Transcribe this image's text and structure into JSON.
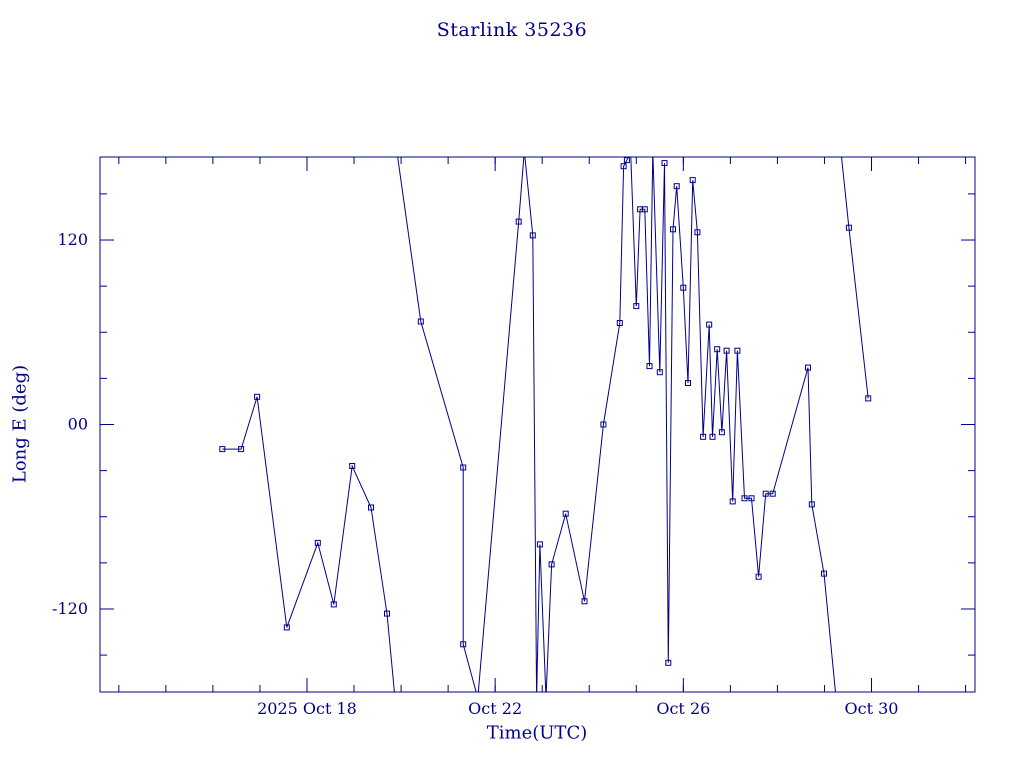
{
  "colors": {
    "accent": "#00008b",
    "background": "#ffffff"
  },
  "chart_data": {
    "type": "line",
    "title": "Starlink 35236",
    "xlabel": "Time(UTC)",
    "ylabel": "Long E (deg)",
    "x_unit": "day of October 2025, UTC",
    "xlim": [
      13.6,
      32.2
    ],
    "ylim": [
      -174,
      174
    ],
    "grid": false,
    "legend": null,
    "marker": "open-square",
    "x_ticks": [
      {
        "value": 18,
        "label": "2025 Oct 18"
      },
      {
        "value": 22,
        "label": "Oct 22"
      },
      {
        "value": 26,
        "label": "Oct 26"
      },
      {
        "value": 30,
        "label": "Oct 30"
      }
    ],
    "x_minor_step": 1,
    "y_ticks": [
      {
        "value": 120,
        "label": "120"
      },
      {
        "value": 0,
        "label": "00"
      },
      {
        "value": -120,
        "label": "-120"
      }
    ],
    "y_minor_step": 30,
    "series_name": "longitude east of satellite vs time (wraps at +/-180 deg)",
    "segments": [
      [
        [
          16.2,
          -16
        ],
        [
          16.6,
          -16
        ],
        [
          16.94,
          18
        ],
        [
          17.57,
          -132
        ],
        [
          18.23,
          -77
        ],
        [
          18.57,
          -117
        ],
        [
          18.96,
          -27
        ],
        [
          19.36,
          -54
        ],
        [
          19.7,
          -123
        ],
        [
          19.87,
          -178
        ]
      ],
      [
        [
          19.91,
          178
        ],
        [
          20.42,
          67
        ],
        [
          21.32,
          -28
        ],
        [
          21.32,
          -143
        ],
        [
          21.63,
          -178
        ],
        [
          22.5,
          132
        ],
        [
          22.62,
          178
        ],
        [
          22.8,
          123
        ],
        [
          22.88,
          -178
        ],
        [
          22.95,
          -78
        ],
        [
          23.08,
          -178
        ],
        [
          23.2,
          -91
        ],
        [
          23.5,
          -58
        ],
        [
          23.9,
          -115
        ],
        [
          24.3,
          0
        ],
        [
          24.65,
          66
        ],
        [
          24.73,
          168
        ],
        [
          24.8,
          172
        ],
        [
          24.88,
          178
        ],
        [
          25.0,
          77
        ],
        [
          25.08,
          140
        ],
        [
          25.18,
          140
        ],
        [
          25.28,
          38
        ],
        [
          25.35,
          178
        ],
        [
          25.5,
          34
        ],
        [
          25.6,
          170
        ],
        [
          25.68,
          -155
        ],
        [
          25.78,
          127
        ],
        [
          25.86,
          155
        ],
        [
          26.0,
          89
        ],
        [
          26.1,
          27
        ],
        [
          26.2,
          159
        ],
        [
          26.3,
          125
        ],
        [
          26.42,
          -8
        ],
        [
          26.55,
          65
        ],
        [
          26.62,
          -8
        ],
        [
          26.72,
          49
        ],
        [
          26.82,
          -5
        ],
        [
          26.92,
          48
        ],
        [
          27.05,
          -50
        ],
        [
          27.15,
          48
        ],
        [
          27.3,
          -48
        ],
        [
          27.45,
          -48
        ],
        [
          27.6,
          -99
        ],
        [
          27.75,
          -45
        ],
        [
          27.9,
          -45
        ],
        [
          28.65,
          37
        ],
        [
          28.73,
          -52
        ],
        [
          28.99,
          -97
        ],
        [
          29.25,
          -179
        ]
      ],
      [
        [
          29.35,
          178
        ],
        [
          29.52,
          128
        ],
        [
          29.93,
          17
        ]
      ]
    ]
  }
}
